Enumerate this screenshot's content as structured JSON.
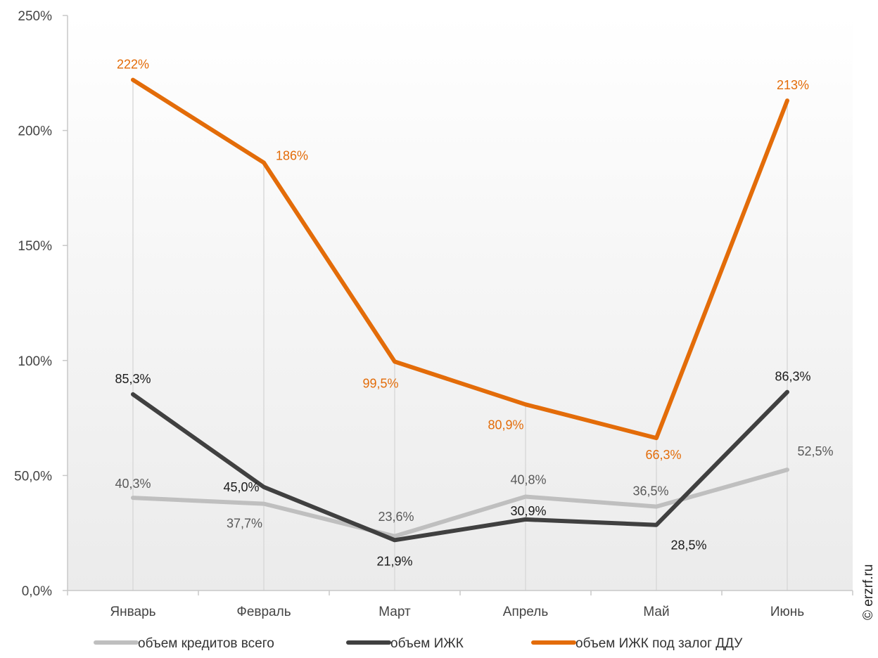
{
  "chart_data": {
    "type": "line",
    "categories": [
      "Январь",
      "Февраль",
      "Март",
      "Апрель",
      "Май",
      "Июнь"
    ],
    "ylim": [
      0,
      250
    ],
    "y_ticks": [
      {
        "value": 0,
        "label": "0,0%"
      },
      {
        "value": 50,
        "label": "50,0%"
      },
      {
        "value": 100,
        "label": "100%"
      },
      {
        "value": 150,
        "label": "150%"
      },
      {
        "value": 200,
        "label": "200%"
      },
      {
        "value": 250,
        "label": "250%"
      }
    ],
    "grid": false,
    "legend_position": "bottom",
    "series": [
      {
        "name": "объем кредитов всего",
        "color": "#bfbfbf",
        "label_color": "#595959",
        "values": [
          40.3,
          37.7,
          23.6,
          40.8,
          36.5,
          52.5
        ],
        "labels": [
          "40,3%",
          "37,7%",
          "23,6%",
          "40,8%",
          "36,5%",
          "52,5%"
        ]
      },
      {
        "name": "объем ИЖК",
        "color": "#404040",
        "label_color": "#1a1a1a",
        "values": [
          85.3,
          45.0,
          21.9,
          30.9,
          28.5,
          86.3
        ],
        "labels": [
          "85,3%",
          "45,0%",
          "21,9%",
          "30,9%",
          "28,5%",
          "86,3%"
        ]
      },
      {
        "name": "объем ИЖК под залог ДДУ",
        "color": "#e36c09",
        "label_color": "#e36c09",
        "values": [
          222,
          186,
          99.5,
          80.9,
          66.3,
          213
        ],
        "labels": [
          "222%",
          "186%",
          "99,5%",
          "80,9%",
          "66,3%",
          "213%"
        ]
      }
    ]
  },
  "watermark": "© erzrf.ru"
}
